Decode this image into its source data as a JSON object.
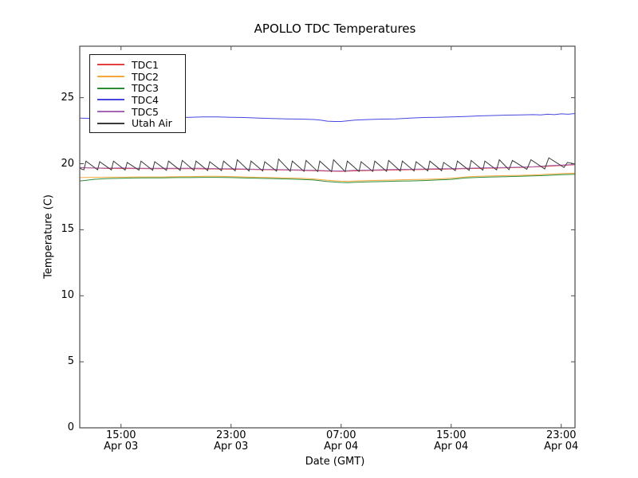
{
  "title": "APOLLO TDC Temperatures",
  "axes": {
    "xlabel": "Date (GMT)",
    "ylabel": "Temperature (C)"
  },
  "legend": {
    "entries": [
      "TDC1",
      "TDC2",
      "TDC3",
      "TDC4",
      "TDC5",
      "Utah Air"
    ]
  },
  "chart_data": {
    "type": "line",
    "title": "APOLLO TDC Temperatures",
    "xlabel": "Date (GMT)",
    "ylabel": "Temperature (C)",
    "x_unit": "hours since Apr 03 12:00 GMT",
    "xlim": [
      0,
      36
    ],
    "ylim": [
      0,
      28.9
    ],
    "grid": false,
    "legend_position": "upper left",
    "yticks": [
      0,
      5,
      10,
      15,
      20,
      25
    ],
    "xticks": [
      {
        "hours": 3,
        "time": "15:00",
        "date": "Apr 03"
      },
      {
        "hours": 11,
        "time": "23:00",
        "date": "Apr 03"
      },
      {
        "hours": 19,
        "time": "07:00",
        "date": "Apr 04"
      },
      {
        "hours": 27,
        "time": "15:00",
        "date": "Apr 04"
      },
      {
        "hours": 35,
        "time": "23:00",
        "date": "Apr 04"
      }
    ],
    "series": [
      {
        "name": "TDC1",
        "color": "#e54040",
        "points": [
          [
            0,
            19.7
          ],
          [
            2,
            19.64
          ],
          [
            4,
            19.63
          ],
          [
            6,
            19.62
          ],
          [
            8,
            19.62
          ],
          [
            10,
            19.6
          ],
          [
            12,
            19.57
          ],
          [
            14,
            19.54
          ],
          [
            16,
            19.5
          ],
          [
            18,
            19.44
          ],
          [
            19,
            19.42
          ],
          [
            20,
            19.46
          ],
          [
            22,
            19.51
          ],
          [
            24,
            19.55
          ],
          [
            26,
            19.58
          ],
          [
            28,
            19.62
          ],
          [
            30,
            19.67
          ],
          [
            32,
            19.72
          ],
          [
            34,
            19.8
          ],
          [
            36,
            19.92
          ]
        ]
      },
      {
        "name": "TDC2",
        "color": "#f5a93b",
        "points": [
          [
            0,
            18.95
          ],
          [
            1,
            18.97
          ],
          [
            2,
            18.98
          ],
          [
            3,
            18.98
          ],
          [
            4,
            19.0
          ],
          [
            5,
            19.0
          ],
          [
            6,
            19.0
          ],
          [
            7,
            19.02
          ],
          [
            8,
            19.03
          ],
          [
            9,
            19.05
          ],
          [
            10,
            19.05
          ],
          [
            11,
            19.03
          ],
          [
            12,
            19.0
          ],
          [
            13,
            18.97
          ],
          [
            14,
            18.95
          ],
          [
            15,
            18.92
          ],
          [
            16,
            18.9
          ],
          [
            17,
            18.85
          ],
          [
            18,
            18.75
          ],
          [
            19,
            18.68
          ],
          [
            19.5,
            18.67
          ],
          [
            20,
            18.7
          ],
          [
            21,
            18.73
          ],
          [
            22,
            18.75
          ],
          [
            23,
            18.77
          ],
          [
            24,
            18.8
          ],
          [
            25,
            18.82
          ],
          [
            26,
            18.85
          ],
          [
            27,
            18.9
          ],
          [
            28,
            19.0
          ],
          [
            29,
            19.05
          ],
          [
            30,
            19.08
          ],
          [
            31,
            19.1
          ],
          [
            32,
            19.12
          ],
          [
            33,
            19.15
          ],
          [
            34,
            19.2
          ],
          [
            35,
            19.25
          ],
          [
            36,
            19.28
          ]
        ]
      },
      {
        "name": "TDC3",
        "color": "#2c8c36",
        "points": [
          [
            0,
            18.7
          ],
          [
            0.5,
            18.75
          ],
          [
            1,
            18.82
          ],
          [
            2,
            18.88
          ],
          [
            3,
            18.9
          ],
          [
            4,
            18.92
          ],
          [
            5,
            18.93
          ],
          [
            6,
            18.93
          ],
          [
            7,
            18.95
          ],
          [
            8,
            18.95
          ],
          [
            9,
            18.97
          ],
          [
            10,
            18.97
          ],
          [
            11,
            18.95
          ],
          [
            12,
            18.92
          ],
          [
            13,
            18.9
          ],
          [
            14,
            18.88
          ],
          [
            15,
            18.85
          ],
          [
            16,
            18.82
          ],
          [
            17,
            18.77
          ],
          [
            18,
            18.65
          ],
          [
            19,
            18.58
          ],
          [
            19.5,
            18.57
          ],
          [
            20,
            18.6
          ],
          [
            21,
            18.63
          ],
          [
            22,
            18.65
          ],
          [
            23,
            18.68
          ],
          [
            24,
            18.7
          ],
          [
            25,
            18.73
          ],
          [
            26,
            18.77
          ],
          [
            27,
            18.82
          ],
          [
            28,
            18.92
          ],
          [
            29,
            18.97
          ],
          [
            30,
            19.0
          ],
          [
            31,
            19.02
          ],
          [
            32,
            19.05
          ],
          [
            33,
            19.08
          ],
          [
            34,
            19.12
          ],
          [
            35,
            19.17
          ],
          [
            36,
            19.2
          ]
        ]
      },
      {
        "name": "TDC4",
        "color": "#4747e0",
        "points": [
          [
            0,
            23.45
          ],
          [
            1,
            23.42
          ],
          [
            2,
            23.45
          ],
          [
            3,
            23.42
          ],
          [
            4,
            23.45
          ],
          [
            5,
            23.43
          ],
          [
            6,
            23.45
          ],
          [
            7,
            23.5
          ],
          [
            8,
            23.52
          ],
          [
            9,
            23.55
          ],
          [
            10,
            23.55
          ],
          [
            11,
            23.52
          ],
          [
            12,
            23.5
          ],
          [
            13,
            23.45
          ],
          [
            14,
            23.42
          ],
          [
            15,
            23.4
          ],
          [
            16,
            23.38
          ],
          [
            17,
            23.35
          ],
          [
            17.5,
            23.3
          ],
          [
            18,
            23.22
          ],
          [
            18.5,
            23.2
          ],
          [
            19,
            23.2
          ],
          [
            19.5,
            23.25
          ],
          [
            20,
            23.3
          ],
          [
            21,
            23.35
          ],
          [
            22,
            23.38
          ],
          [
            23,
            23.4
          ],
          [
            24,
            23.45
          ],
          [
            25,
            23.5
          ],
          [
            26,
            23.52
          ],
          [
            27,
            23.55
          ],
          [
            28,
            23.58
          ],
          [
            29,
            23.62
          ],
          [
            30,
            23.65
          ],
          [
            31,
            23.68
          ],
          [
            32,
            23.7
          ],
          [
            33,
            23.72
          ],
          [
            33.5,
            23.7
          ],
          [
            34,
            23.75
          ],
          [
            34.5,
            23.72
          ],
          [
            35,
            23.78
          ],
          [
            35.5,
            23.75
          ],
          [
            36,
            23.8
          ]
        ]
      },
      {
        "name": "TDC5",
        "color": "#a765b5",
        "points": [
          [
            0,
            19.72
          ],
          [
            1,
            19.68
          ],
          [
            2,
            19.67
          ],
          [
            3,
            19.68
          ],
          [
            4,
            19.66
          ],
          [
            5,
            19.65
          ],
          [
            6,
            19.66
          ],
          [
            7,
            19.65
          ],
          [
            8,
            19.66
          ],
          [
            9,
            19.65
          ],
          [
            10,
            19.63
          ],
          [
            11,
            19.62
          ],
          [
            12,
            19.6
          ],
          [
            13,
            19.58
          ],
          [
            14,
            19.57
          ],
          [
            15,
            19.55
          ],
          [
            16,
            19.53
          ],
          [
            17,
            19.5
          ],
          [
            18,
            19.47
          ],
          [
            19,
            19.45
          ],
          [
            20,
            19.5
          ],
          [
            21,
            19.52
          ],
          [
            22,
            19.55
          ],
          [
            23,
            19.57
          ],
          [
            24,
            19.58
          ],
          [
            25,
            19.6
          ],
          [
            26,
            19.62
          ],
          [
            27,
            19.63
          ],
          [
            28,
            19.65
          ],
          [
            29,
            19.68
          ],
          [
            30,
            19.7
          ],
          [
            31,
            19.72
          ],
          [
            32,
            19.75
          ],
          [
            33,
            19.78
          ],
          [
            34,
            19.85
          ],
          [
            35,
            19.9
          ],
          [
            36,
            19.95
          ]
        ]
      },
      {
        "name": "Utah Air",
        "color": "#3a3a3a",
        "points": [
          [
            0,
            19.72
          ],
          [
            0.15,
            19.58
          ],
          [
            0.3,
            19.55
          ],
          [
            0.45,
            20.2
          ],
          [
            1.3,
            19.54
          ],
          [
            1.45,
            20.15
          ],
          [
            2.3,
            19.53
          ],
          [
            2.45,
            20.2
          ],
          [
            3.3,
            19.52
          ],
          [
            3.45,
            20.1
          ],
          [
            4.3,
            19.51
          ],
          [
            4.45,
            20.2
          ],
          [
            5.3,
            19.5
          ],
          [
            5.45,
            20.15
          ],
          [
            6.3,
            19.5
          ],
          [
            6.45,
            20.2
          ],
          [
            7.3,
            19.5
          ],
          [
            7.45,
            20.25
          ],
          [
            8.3,
            19.49
          ],
          [
            8.45,
            20.2
          ],
          [
            9.3,
            19.48
          ],
          [
            9.45,
            20.15
          ],
          [
            10.3,
            19.47
          ],
          [
            10.45,
            20.2
          ],
          [
            11.3,
            19.46
          ],
          [
            11.45,
            20.3
          ],
          [
            12.3,
            19.45
          ],
          [
            12.45,
            20.2
          ],
          [
            13.3,
            19.45
          ],
          [
            13.45,
            20.15
          ],
          [
            14.3,
            19.44
          ],
          [
            14.45,
            20.35
          ],
          [
            15.3,
            19.43
          ],
          [
            15.45,
            20.2
          ],
          [
            16.3,
            19.42
          ],
          [
            16.45,
            20.25
          ],
          [
            17.3,
            19.41
          ],
          [
            17.45,
            20.2
          ],
          [
            18.3,
            19.4
          ],
          [
            18.45,
            20.3
          ],
          [
            19.3,
            19.4
          ],
          [
            19.45,
            20.2
          ],
          [
            20.3,
            19.41
          ],
          [
            20.45,
            20.15
          ],
          [
            21.3,
            19.42
          ],
          [
            21.45,
            20.2
          ],
          [
            22.3,
            19.43
          ],
          [
            22.45,
            20.25
          ],
          [
            23.3,
            19.44
          ],
          [
            23.45,
            20.2
          ],
          [
            24.3,
            19.45
          ],
          [
            24.45,
            20.15
          ],
          [
            25.3,
            19.46
          ],
          [
            25.45,
            20.2
          ],
          [
            26.3,
            19.47
          ],
          [
            26.45,
            20.1
          ],
          [
            27.3,
            19.48
          ],
          [
            27.45,
            20.2
          ],
          [
            28.3,
            19.5
          ],
          [
            28.45,
            20.25
          ],
          [
            29.3,
            19.51
          ],
          [
            29.45,
            20.2
          ],
          [
            30.3,
            19.53
          ],
          [
            30.5,
            20.3
          ],
          [
            31.2,
            19.55
          ],
          [
            31.45,
            20.25
          ],
          [
            32.5,
            19.58
          ],
          [
            32.8,
            20.3
          ],
          [
            33.8,
            19.6
          ],
          [
            34.1,
            20.45
          ],
          [
            35.2,
            19.72
          ],
          [
            35.45,
            20.1
          ],
          [
            36,
            19.98
          ]
        ]
      }
    ]
  }
}
